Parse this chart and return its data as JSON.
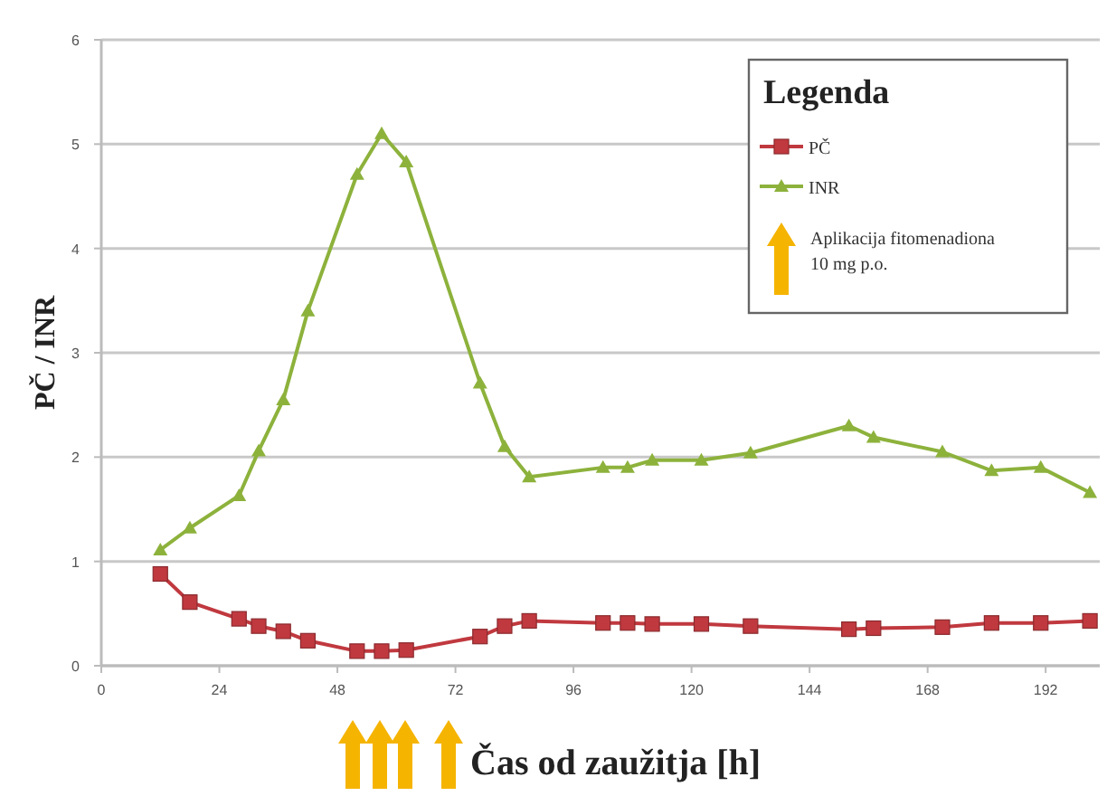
{
  "chart_data": {
    "type": "line",
    "xlabel": "Čas od zaužitja [h]",
    "ylabel": "PČ / INR",
    "legend_title": "Legenda",
    "xlim": [
      0,
      203
    ],
    "ylim": [
      0,
      6
    ],
    "xticks": [
      0,
      24,
      48,
      72,
      96,
      120,
      144,
      168,
      192
    ],
    "yticks": [
      0,
      1,
      2,
      3,
      4,
      5,
      6
    ],
    "grid": "y",
    "legend": "top right",
    "x": [
      12,
      18,
      28,
      32,
      37,
      42,
      52,
      57,
      62,
      77,
      82,
      87,
      102,
      107,
      112,
      122,
      132,
      152,
      157,
      171,
      181,
      191,
      201
    ],
    "series": [
      {
        "name": "PČ",
        "color": "#c0393f",
        "marker": "square",
        "values": [
          0.88,
          0.61,
          0.45,
          0.38,
          0.33,
          0.24,
          0.14,
          0.14,
          0.15,
          0.28,
          0.38,
          0.43,
          0.41,
          0.41,
          0.4,
          0.4,
          0.38,
          0.35,
          0.36,
          0.37,
          0.41,
          0.41,
          0.43
        ]
      },
      {
        "name": "INR",
        "color": "#8db23c",
        "marker": "triangle",
        "values": [
          1.11,
          1.32,
          1.63,
          2.06,
          2.55,
          3.4,
          4.71,
          5.1,
          4.83,
          2.71,
          2.1,
          1.81,
          1.9,
          1.9,
          1.97,
          1.97,
          2.04,
          2.3,
          2.19,
          2.05,
          1.87,
          1.9,
          1.66
        ]
      }
    ],
    "annotations": [
      "Aplikacija fitomenadiona 10 mg p.o."
    ]
  }
}
